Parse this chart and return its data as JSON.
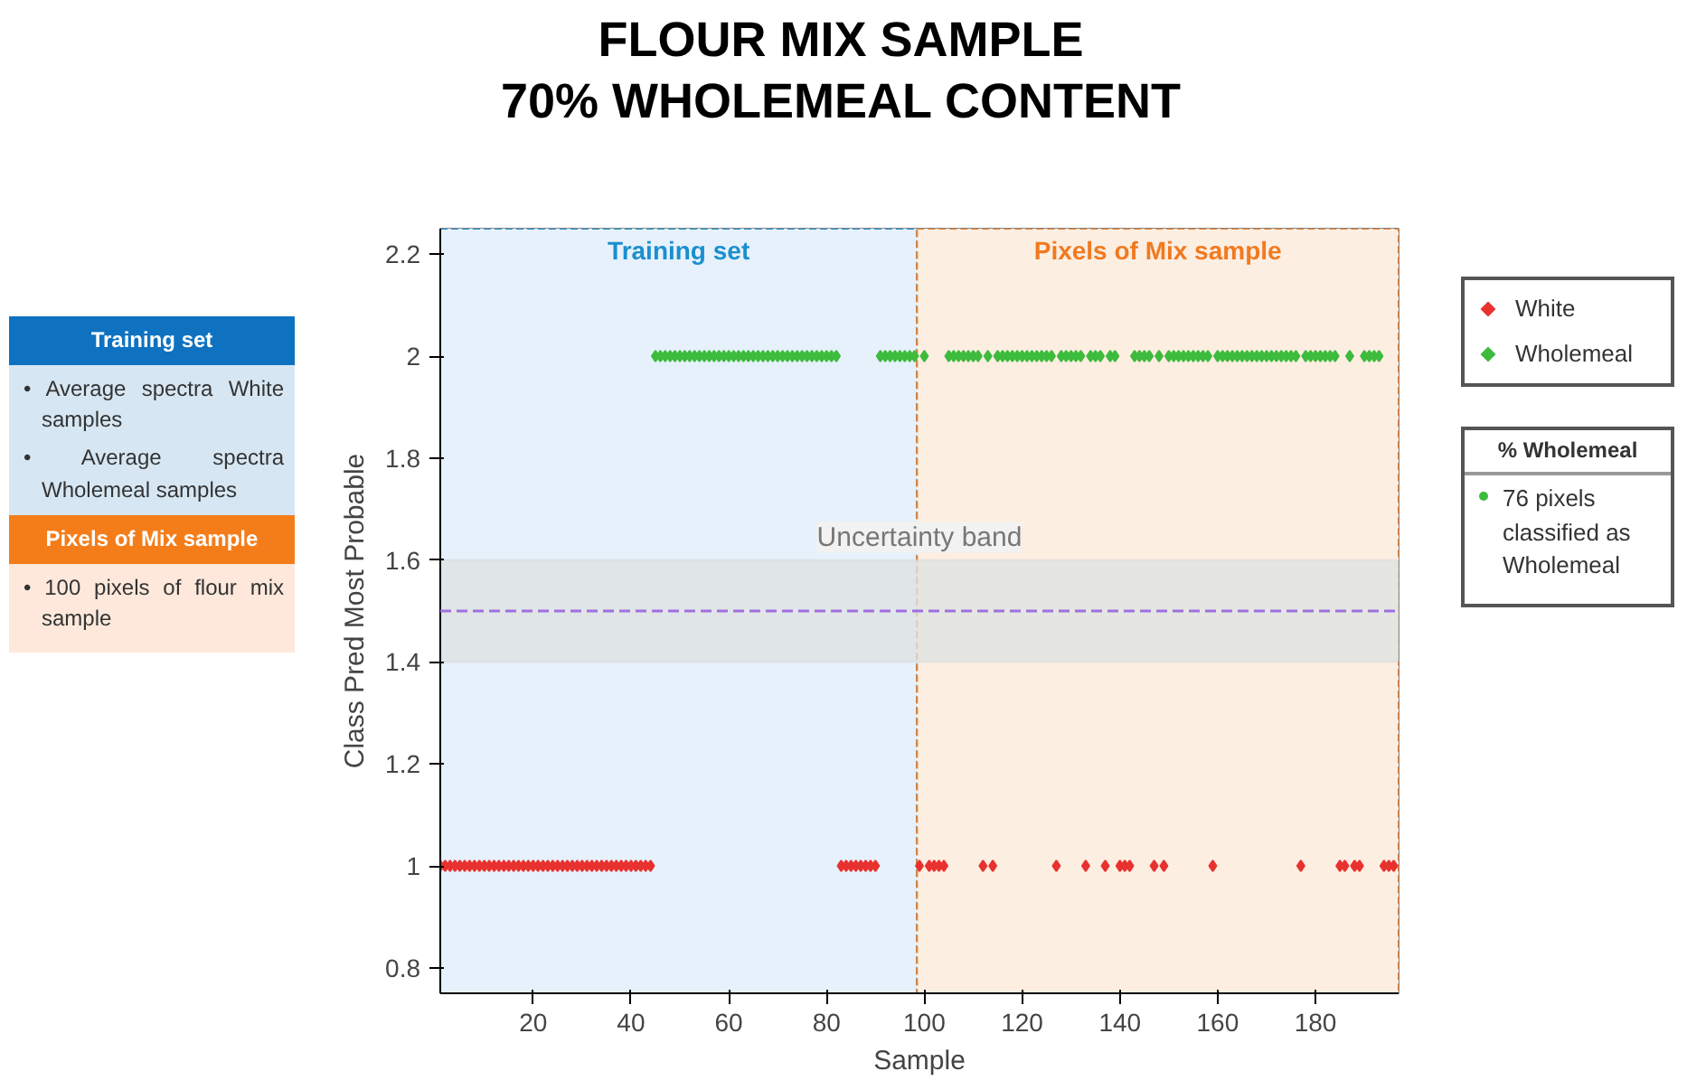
{
  "chart_data": {
    "type": "scatter",
    "title": "FLOUR MIX SAMPLE\n70% WHOLEMEAL CONTENT",
    "xlabel": "Sample",
    "ylabel": "Class Pred Most Probable",
    "series": [
      {
        "name": "White",
        "color": "#e8322f",
        "x": [
          1,
          2,
          3,
          4,
          5,
          6,
          7,
          8,
          9,
          10,
          11,
          12,
          13,
          14,
          15,
          16,
          17,
          18,
          19,
          20,
          21,
          22,
          23,
          24,
          25,
          26,
          27,
          28,
          29,
          30,
          31,
          32,
          33,
          34,
          35,
          36,
          37,
          38,
          39,
          40,
          41,
          42,
          43,
          44,
          83,
          84,
          85,
          86,
          87,
          88,
          89,
          90,
          99,
          101,
          102,
          103,
          104,
          112,
          114,
          127,
          133,
          137,
          140,
          141,
          142,
          147,
          149,
          159,
          177,
          185,
          186,
          188,
          189,
          194,
          195,
          196
        ],
        "values": [
          1,
          1,
          1,
          1,
          1,
          1,
          1,
          1,
          1,
          1,
          1,
          1,
          1,
          1,
          1,
          1,
          1,
          1,
          1,
          1,
          1,
          1,
          1,
          1,
          1,
          1,
          1,
          1,
          1,
          1,
          1,
          1,
          1,
          1,
          1,
          1,
          1,
          1,
          1,
          1,
          1,
          1,
          1,
          1,
          1,
          1,
          1,
          1,
          1,
          1,
          1,
          1,
          1,
          1,
          1,
          1,
          1,
          1,
          1,
          1,
          1,
          1,
          1,
          1,
          1,
          1,
          1,
          1,
          1,
          1,
          1,
          1,
          1,
          1,
          1,
          1
        ]
      },
      {
        "name": "Wholemeal",
        "color": "#3dbb3d",
        "x": [
          45,
          46,
          47,
          48,
          49,
          50,
          51,
          52,
          53,
          54,
          55,
          56,
          57,
          58,
          59,
          60,
          61,
          62,
          63,
          64,
          65,
          66,
          67,
          68,
          69,
          70,
          71,
          72,
          73,
          74,
          75,
          76,
          77,
          78,
          79,
          80,
          81,
          82,
          91,
          92,
          93,
          94,
          95,
          96,
          97,
          98,
          100,
          105,
          106,
          107,
          108,
          109,
          110,
          111,
          113,
          115,
          116,
          117,
          118,
          119,
          120,
          121,
          122,
          123,
          124,
          125,
          126,
          128,
          129,
          130,
          131,
          132,
          134,
          135,
          136,
          138,
          139,
          143,
          144,
          145,
          146,
          148,
          150,
          151,
          152,
          153,
          154,
          155,
          156,
          157,
          158,
          160,
          161,
          162,
          163,
          164,
          165,
          166,
          167,
          168,
          169,
          170,
          171,
          172,
          173,
          174,
          175,
          176,
          178,
          179,
          180,
          181,
          182,
          183,
          184,
          187,
          190,
          191,
          192,
          193
        ],
        "values": [
          2,
          2,
          2,
          2,
          2,
          2,
          2,
          2,
          2,
          2,
          2,
          2,
          2,
          2,
          2,
          2,
          2,
          2,
          2,
          2,
          2,
          2,
          2,
          2,
          2,
          2,
          2,
          2,
          2,
          2,
          2,
          2,
          2,
          2,
          2,
          2,
          2,
          2,
          2,
          2,
          2,
          2,
          2,
          2,
          2,
          2,
          2,
          2,
          2,
          2,
          2,
          2,
          2,
          2,
          2,
          2,
          2,
          2,
          2,
          2,
          2,
          2,
          2,
          2,
          2,
          2,
          2,
          2,
          2,
          2,
          2,
          2,
          2,
          2,
          2,
          2,
          2,
          2,
          2,
          2,
          2,
          2,
          2,
          2,
          2,
          2,
          2,
          2,
          2,
          2,
          2,
          2,
          2,
          2,
          2,
          2,
          2,
          2,
          2,
          2,
          2,
          2,
          2,
          2,
          2,
          2,
          2,
          2,
          2,
          2,
          2,
          2,
          2,
          2,
          2,
          2,
          2,
          2,
          2,
          2
        ]
      }
    ],
    "marker": "diamond",
    "xlim": [
      1,
      197
    ],
    "xticks": [
      20,
      40,
      60,
      80,
      100,
      120,
      140,
      160,
      180
    ],
    "ylim": [
      0.75,
      2.25
    ],
    "yticks": [
      0.8,
      1,
      1.2,
      1.4,
      1.6,
      1.8,
      2,
      2.2
    ],
    "bands": [
      {
        "axis": "x",
        "from": 1,
        "to": 98.5,
        "label": "Training set",
        "color": "#e6f1fb"
      },
      {
        "axis": "x",
        "from": 98.5,
        "to": 197,
        "label": "Pixels of Mix sample",
        "color": "#fdeee2"
      },
      {
        "axis": "y",
        "from": 1.4,
        "to": 1.6,
        "label": "Uncertainty band",
        "color": "#dfe2e2"
      }
    ],
    "ref_lines": [
      {
        "axis": "y",
        "value": 1.5,
        "color": "#a070e0",
        "line_style": "dashed"
      }
    ],
    "annotations": [
      "Training set",
      "• Average spectra White samples",
      "• Average spectra Wholemeal samples",
      "Pixels of Mix sample",
      "• 100 pixels of flour mix sample",
      "% Wholemeal",
      "76 pixels classified as Wholemeal"
    ],
    "legend": "right"
  }
}
